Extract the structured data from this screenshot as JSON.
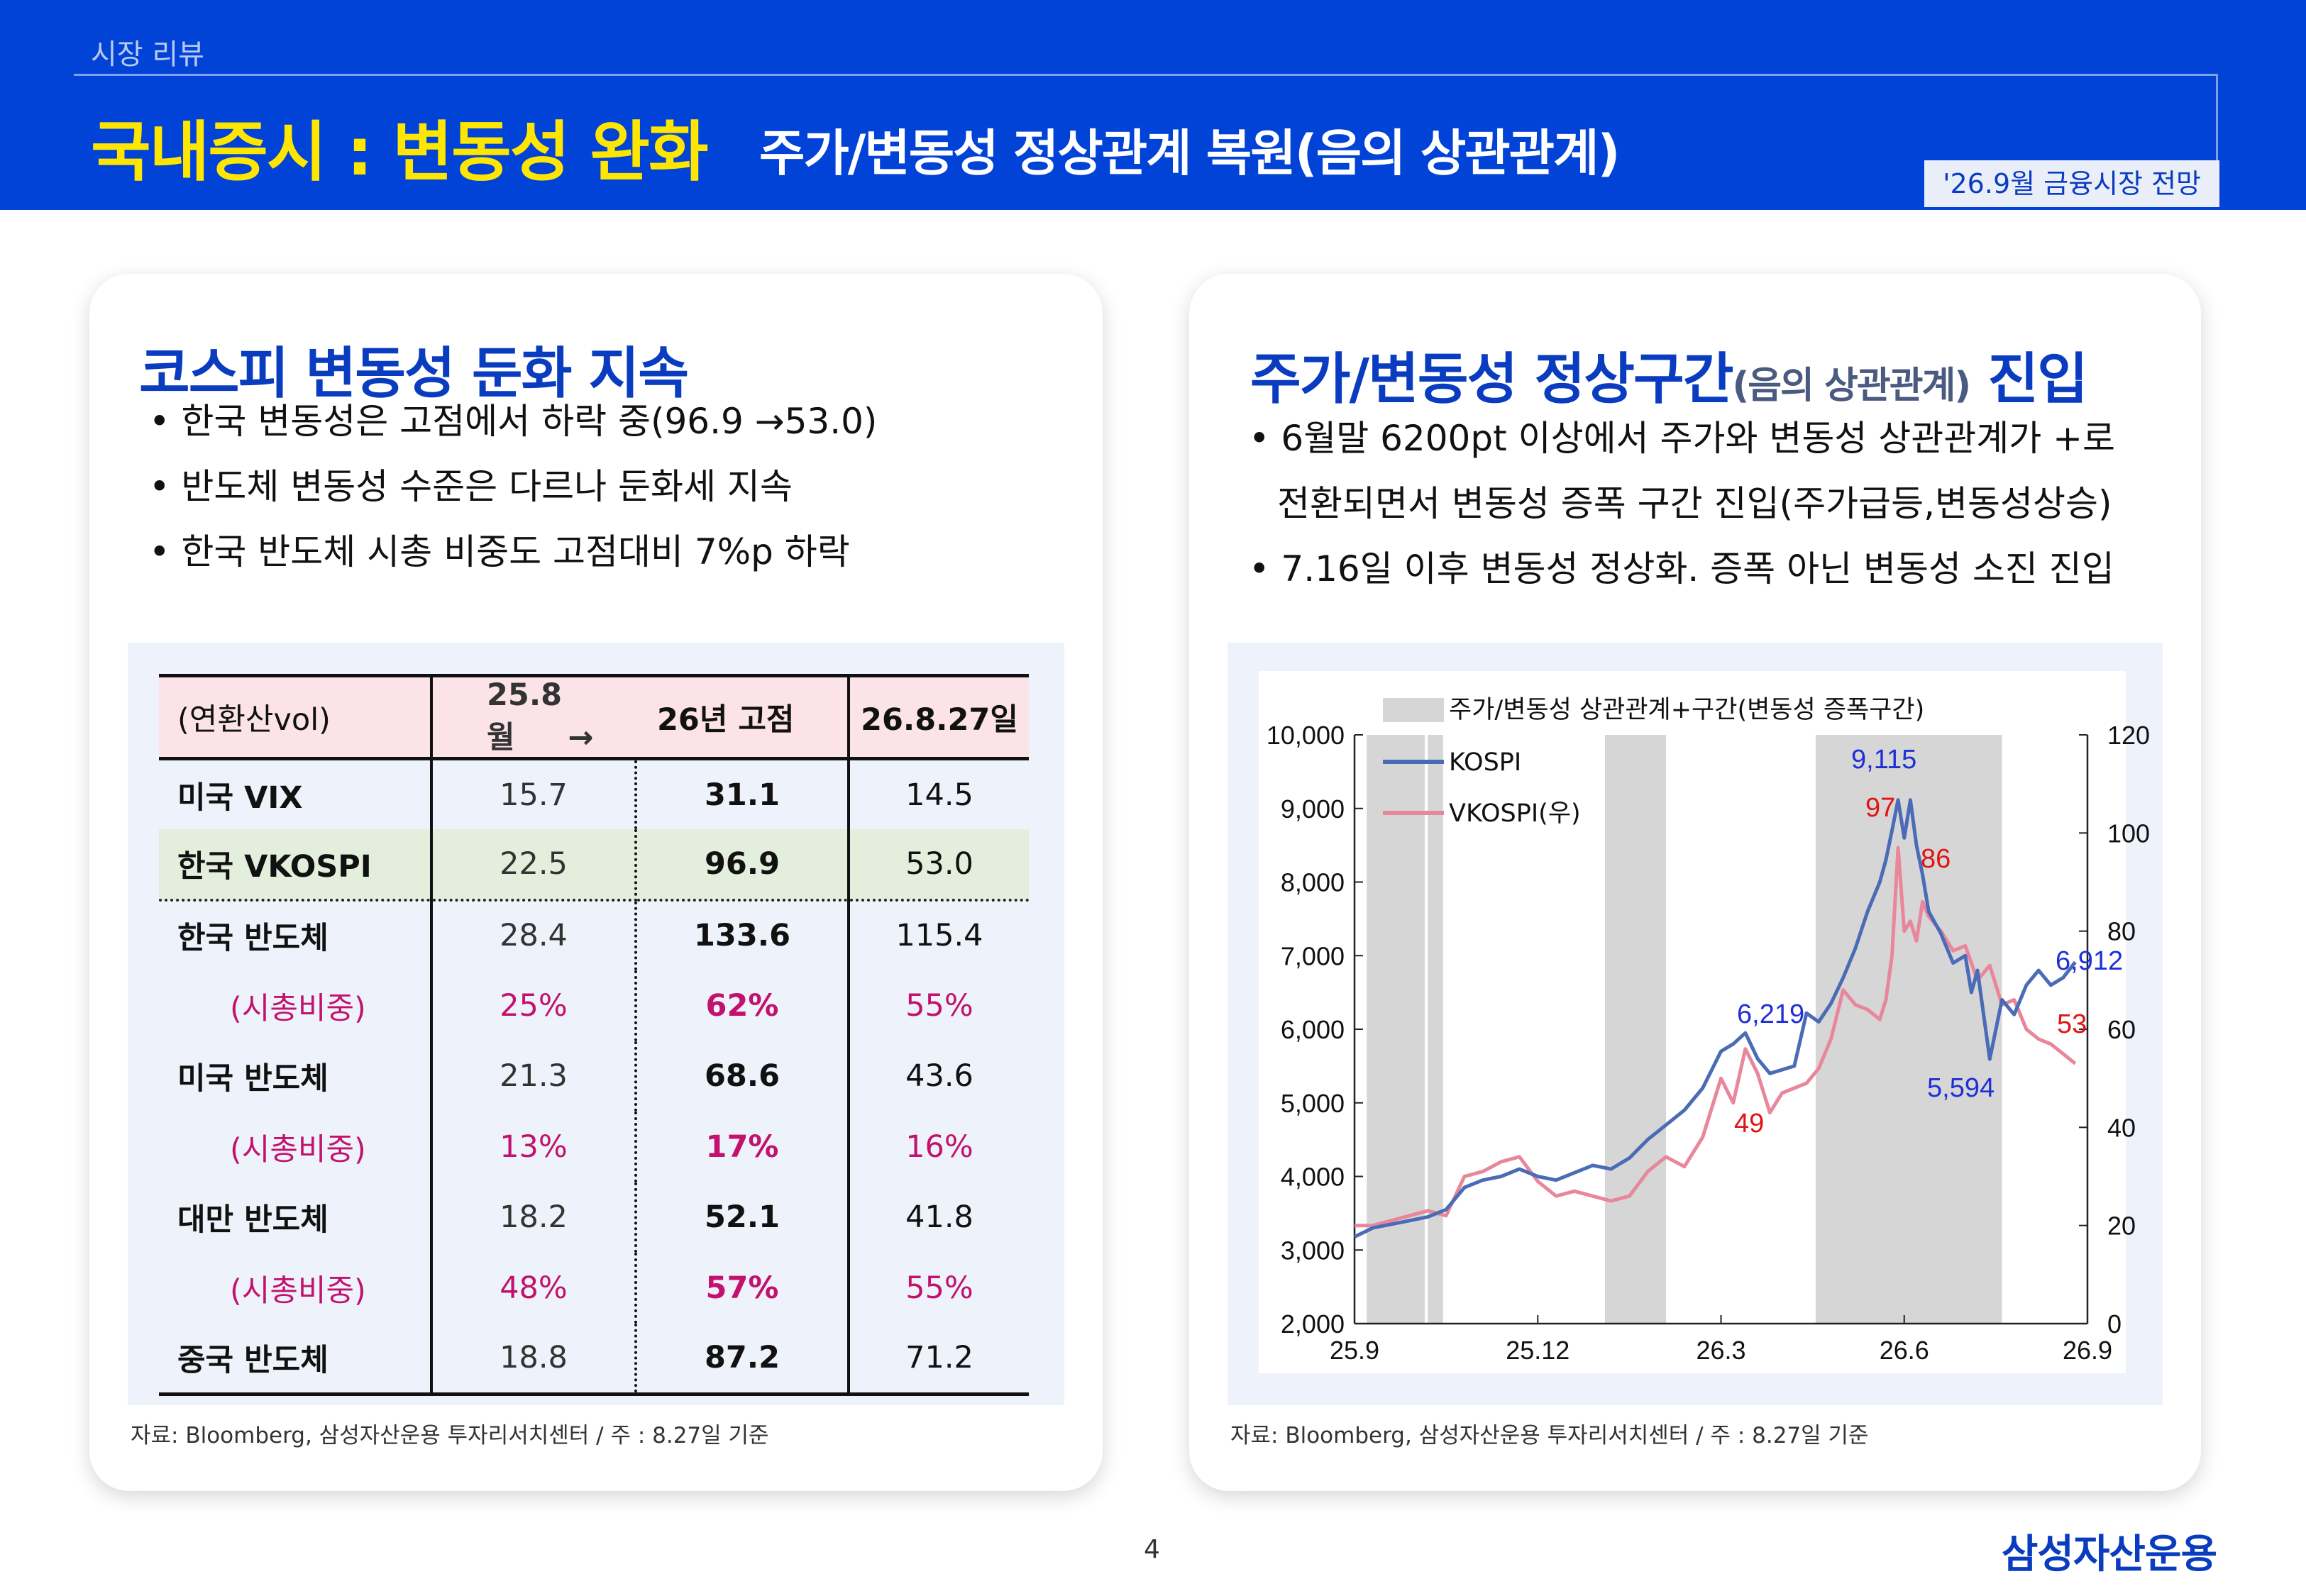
{
  "header": {
    "section": "시장 리뷰",
    "title_main": "국내증시 : 변동성 완화",
    "title_sub": "주가/변동성 정상관계 복원(음의 상관관계)",
    "badge": "'26.9월 금융시장 전망"
  },
  "left": {
    "title": "코스피 변동성 둔화 지속",
    "bullets": [
      "한국 변동성은 고점에서 하락 중(96.9 →53.0)",
      "반도체 변동성 수준은 다르나 둔화세 지속",
      "한국 반도체 시총 비중도 고점대비 7%p 하락"
    ],
    "table": {
      "head": {
        "c0": "(연환산vol)",
        "c1": "25.8월",
        "arrow": "→",
        "c2": "26년 고점",
        "c3": "26.8.27일"
      },
      "rows": [
        {
          "c0": "미국 VIX",
          "c1": "15.7",
          "c2": "31.1",
          "c3": "14.5"
        },
        {
          "c0": "한국 VKOSPI",
          "c1": "22.5",
          "c2": "96.9",
          "c3": "53.0"
        },
        {
          "c0": "한국 반도체",
          "c1": "28.4",
          "c2": "133.6",
          "c3": "115.4"
        },
        {
          "c0": "(시총비중)",
          "c1": "25%",
          "c2": "62%",
          "c3": "55%"
        },
        {
          "c0": "미국 반도체",
          "c1": "21.3",
          "c2": "68.6",
          "c3": "43.6"
        },
        {
          "c0": "(시총비중)",
          "c1": "13%",
          "c2": "17%",
          "c3": "16%"
        },
        {
          "c0": "대만 반도체",
          "c1": "18.2",
          "c2": "52.1",
          "c3": "41.8"
        },
        {
          "c0": "(시총비중)",
          "c1": "48%",
          "c2": "57%",
          "c3": "55%"
        },
        {
          "c0": "중국 반도체",
          "c1": "18.8",
          "c2": "87.2",
          "c3": "71.2"
        }
      ]
    },
    "source": "자료: Bloomberg, 삼성자산운용 투자리서치센터 / 주 : 8.27일 기준"
  },
  "right": {
    "title_a": "주가/변동성 정상구간",
    "title_small": "(음의 상관관계)",
    "title_b": "진입",
    "bullets": [
      "6월말 6200pt 이상에서 주가와 변동성 상관관계가 +로",
      "전환되면서 변동성 증폭 구간 진입(주가급등,변동성상승)",
      "7.16일 이후 변동성 정상화. 증폭 아닌 변동성 소진 진입"
    ],
    "source": "자료: Bloomberg, 삼성자산운용 투자리서치센터 / 주 : 8.27일 기준"
  },
  "chart_data": {
    "type": "line",
    "legend": [
      "주가/변동성 상관관계+구간(변동성 증폭구간)",
      "KOSPI",
      "VKOSPI(우)"
    ],
    "x_ticks": [
      "25.9",
      "25.12",
      "26.3",
      "26.6",
      "26.9"
    ],
    "y_left_ticks": [
      "2,000",
      "3,000",
      "4,000",
      "5,000",
      "6,000",
      "7,000",
      "8,000",
      "9,000",
      "10,000"
    ],
    "y_right_ticks": [
      "0",
      "20",
      "40",
      "60",
      "80",
      "100",
      "120"
    ],
    "ylim_left": [
      2000,
      10000
    ],
    "ylim_right": [
      0,
      120
    ],
    "shaded_bands": [
      [
        0.2,
        1.15
      ],
      [
        1.2,
        1.45
      ],
      [
        4.1,
        5.1
      ],
      [
        7.55,
        10.6
      ]
    ],
    "kospi": {
      "x": [
        0,
        0.3,
        0.6,
        0.9,
        1.2,
        1.5,
        1.8,
        2.1,
        2.4,
        2.7,
        3.0,
        3.3,
        3.6,
        3.9,
        4.2,
        4.5,
        4.8,
        5.1,
        5.4,
        5.7,
        6.0,
        6.2,
        6.4,
        6.6,
        6.8,
        7.0,
        7.2,
        7.4,
        7.6,
        7.8,
        8.0,
        8.2,
        8.4,
        8.6,
        8.7,
        8.8,
        8.9,
        9.0,
        9.1,
        9.2,
        9.3,
        9.4,
        9.6,
        9.8,
        10.0,
        10.1,
        10.2,
        10.4,
        10.6,
        10.8,
        11.0,
        11.2,
        11.4,
        11.6,
        11.8
      ],
      "y": [
        3180,
        3300,
        3350,
        3400,
        3450,
        3550,
        3850,
        3950,
        4000,
        4100,
        4000,
        3950,
        4050,
        4150,
        4100,
        4250,
        4500,
        4700,
        4900,
        5200,
        5700,
        5800,
        5950,
        5600,
        5400,
        5450,
        5500,
        6219,
        6100,
        6350,
        6700,
        7100,
        7600,
        8000,
        8300,
        8700,
        9115,
        8600,
        9115,
        8500,
        8100,
        7600,
        7300,
        6900,
        7000,
        6500,
        6800,
        5594,
        6400,
        6200,
        6600,
        6800,
        6600,
        6700,
        6912
      ]
    },
    "vkospi": {
      "x": [
        0,
        0.3,
        0.6,
        0.9,
        1.2,
        1.5,
        1.8,
        2.1,
        2.4,
        2.7,
        3.0,
        3.3,
        3.6,
        3.9,
        4.2,
        4.5,
        4.8,
        5.1,
        5.4,
        5.7,
        6.0,
        6.2,
        6.4,
        6.6,
        6.8,
        7.0,
        7.2,
        7.4,
        7.6,
        7.8,
        8.0,
        8.2,
        8.4,
        8.6,
        8.7,
        8.8,
        8.9,
        9.0,
        9.1,
        9.2,
        9.3,
        9.4,
        9.6,
        9.8,
        10.0,
        10.2,
        10.4,
        10.6,
        10.8,
        11.0,
        11.2,
        11.4,
        11.6,
        11.8
      ],
      "y": [
        20,
        20,
        21,
        22,
        23,
        22,
        30,
        31,
        33,
        34,
        29,
        26,
        27,
        26,
        25,
        26,
        31,
        34,
        32,
        38,
        50,
        45,
        56,
        51,
        43,
        47,
        48,
        49,
        52,
        58,
        68,
        65,
        64,
        62,
        66,
        75,
        97,
        80,
        82,
        78,
        86,
        83,
        80,
        76,
        77,
        70,
        73,
        65,
        66,
        60,
        58,
        57,
        55,
        53
      ]
    },
    "annotations": [
      {
        "text": "9,115",
        "series": "kospi"
      },
      {
        "text": "97",
        "series": "vkospi"
      },
      {
        "text": "86",
        "series": "vkospi"
      },
      {
        "text": "6,912",
        "series": "kospi"
      },
      {
        "text": "6,219",
        "series": "kospi"
      },
      {
        "text": "53",
        "series": "vkospi"
      },
      {
        "text": "5,594",
        "series": "kospi"
      },
      {
        "text": "49",
        "series": "vkospi"
      }
    ],
    "colors": {
      "kospi": "#4a6bb5",
      "vkospi": "#e8879c",
      "band": "#d6d6d6",
      "kospi_label": "#1f2fd8",
      "vkospi_label": "#e01414"
    }
  },
  "footer": {
    "page": "4",
    "logo": "삼성자산운용"
  }
}
